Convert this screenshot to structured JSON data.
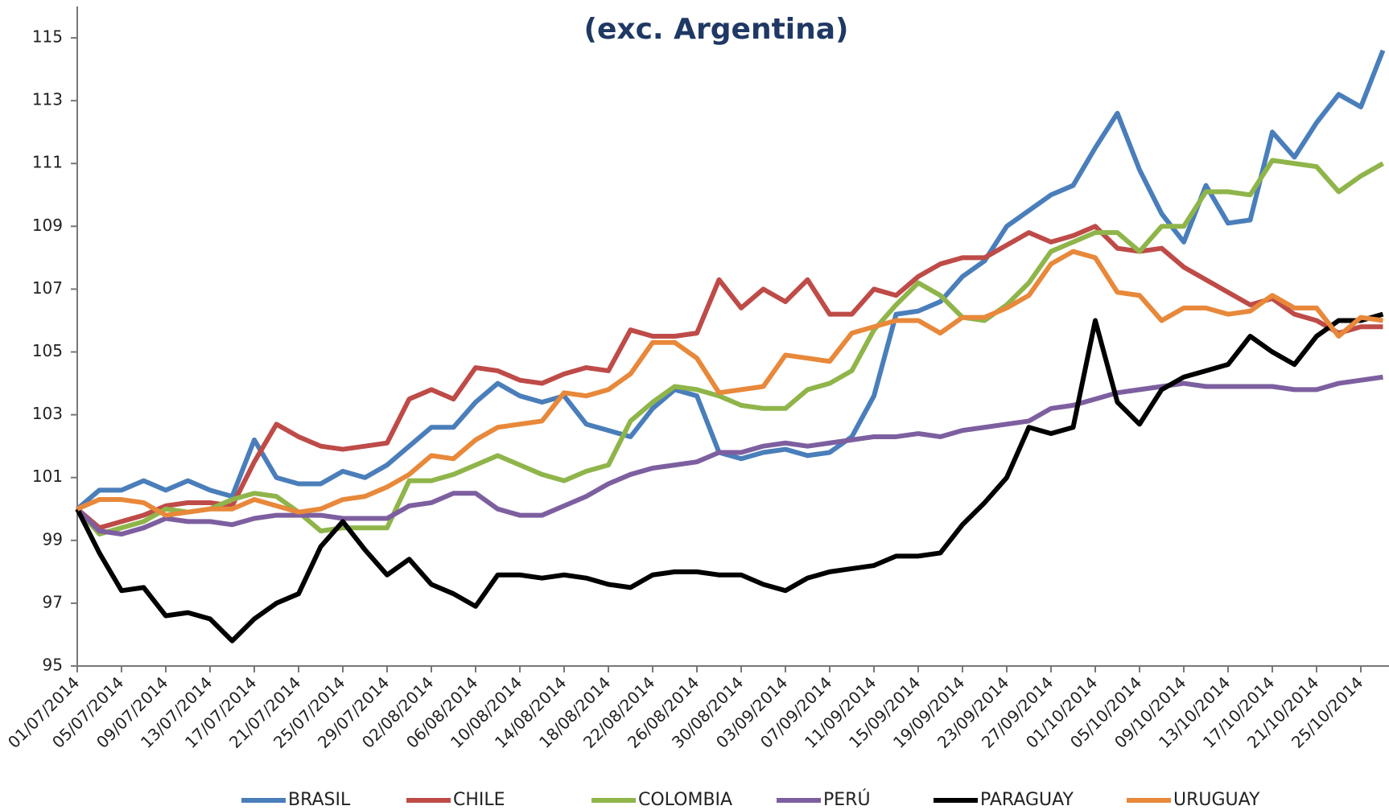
{
  "chart_data": {
    "type": "line",
    "title": "(exc. Argentina)",
    "categories": [
      "01/07/2014",
      null,
      "05/07/2014",
      null,
      "09/07/2014",
      null,
      "13/07/2014",
      null,
      "17/07/2014",
      null,
      "21/07/2014",
      null,
      "25/07/2014",
      null,
      "29/07/2014",
      null,
      "02/08/2014",
      null,
      "06/08/2014",
      null,
      "10/08/2014",
      null,
      "14/08/2014",
      null,
      "18/08/2014",
      null,
      "22/08/2014",
      null,
      "26/08/2014",
      null,
      "30/08/2014",
      null,
      "03/09/2014",
      null,
      "07/09/2014",
      null,
      "11/09/2014",
      null,
      "15/09/2014",
      null,
      "19/09/2014",
      null,
      "23/09/2014",
      null,
      "27/09/2014",
      null,
      "01/10/2014",
      null,
      "05/10/2014",
      null,
      "09/10/2014",
      null,
      "13/10/2014",
      null,
      "17/10/2014",
      null,
      "21/10/2014",
      null,
      "25/10/2014",
      null
    ],
    "series": [
      {
        "name": "BRASIL",
        "color": "#4a7ebb",
        "values": [
          100,
          100.6,
          100.6,
          100.9,
          100.6,
          100.9,
          100.6,
          100.4,
          102.2,
          101.0,
          100.8,
          100.8,
          101.2,
          101.0,
          101.4,
          102.0,
          102.6,
          102.6,
          103.4,
          104.0,
          103.6,
          103.4,
          103.6,
          102.7,
          102.5,
          102.3,
          103.2,
          103.8,
          103.6,
          101.8,
          101.6,
          101.8,
          101.9,
          101.7,
          101.8,
          102.3,
          103.6,
          106.2,
          106.3,
          106.6,
          107.4,
          107.9,
          109.0,
          109.5,
          110.0,
          110.3,
          111.5,
          112.6,
          110.8,
          109.4,
          108.5,
          110.3,
          109.1,
          109.2,
          112.0,
          111.2,
          112.3,
          113.2,
          112.8,
          114.6
        ]
      },
      {
        "name": "CHILE",
        "color": "#be4b48",
        "values": [
          100,
          99.4,
          99.6,
          99.8,
          100.1,
          100.2,
          100.2,
          100.1,
          101.5,
          102.7,
          102.3,
          102.0,
          101.9,
          102.0,
          102.1,
          103.5,
          103.8,
          103.5,
          104.5,
          104.4,
          104.1,
          104.0,
          104.3,
          104.5,
          104.4,
          105.7,
          105.5,
          105.5,
          105.6,
          107.3,
          106.4,
          107.0,
          106.6,
          107.3,
          106.2,
          106.2,
          107.0,
          106.8,
          107.4,
          107.8,
          108.0,
          108.0,
          108.4,
          108.8,
          108.5,
          108.7,
          109.0,
          108.3,
          108.2,
          108.3,
          107.7,
          107.3,
          106.9,
          106.5,
          106.7,
          106.2,
          106.0,
          105.6,
          105.8,
          105.8
        ]
      },
      {
        "name": "COLOMBIA",
        "color": "#8fb54a",
        "values": [
          100,
          99.2,
          99.4,
          99.6,
          100.0,
          99.9,
          100.0,
          100.3,
          100.5,
          100.4,
          99.9,
          99.3,
          99.4,
          99.4,
          99.4,
          100.9,
          100.9,
          101.1,
          101.4,
          101.7,
          101.4,
          101.1,
          100.9,
          101.2,
          101.4,
          102.8,
          103.4,
          103.9,
          103.8,
          103.6,
          103.3,
          103.2,
          103.2,
          103.8,
          104.0,
          104.4,
          105.7,
          106.5,
          107.2,
          106.8,
          106.1,
          106.0,
          106.5,
          107.2,
          108.2,
          108.5,
          108.8,
          108.8,
          108.2,
          109.0,
          109.0,
          110.1,
          110.1,
          110.0,
          111.1,
          111.0,
          110.9,
          110.1,
          110.6,
          111.0
        ]
      },
      {
        "name": "PERÚ",
        "color": "#7d5fa0",
        "values": [
          100,
          99.3,
          99.2,
          99.4,
          99.7,
          99.6,
          99.6,
          99.5,
          99.7,
          99.8,
          99.8,
          99.8,
          99.7,
          99.7,
          99.7,
          100.1,
          100.2,
          100.5,
          100.5,
          100.0,
          99.8,
          99.8,
          100.1,
          100.4,
          100.8,
          101.1,
          101.3,
          101.4,
          101.5,
          101.8,
          101.8,
          102.0,
          102.1,
          102.0,
          102.1,
          102.2,
          102.3,
          102.3,
          102.4,
          102.3,
          102.5,
          102.6,
          102.7,
          102.8,
          103.2,
          103.3,
          103.5,
          103.7,
          103.8,
          103.9,
          104.0,
          103.9,
          103.9,
          103.9,
          103.9,
          103.8,
          103.8,
          104.0,
          104.1,
          104.2
        ]
      },
      {
        "name": "PARAGUAY",
        "color": "#000000",
        "values": [
          100,
          98.6,
          97.4,
          97.5,
          96.6,
          96.7,
          96.5,
          95.8,
          96.5,
          97.0,
          97.3,
          98.8,
          99.6,
          98.7,
          97.9,
          98.4,
          97.6,
          97.3,
          96.9,
          97.9,
          97.9,
          97.8,
          97.9,
          97.8,
          97.6,
          97.5,
          97.9,
          98.0,
          98.0,
          97.9,
          97.9,
          97.6,
          97.4,
          97.8,
          98.0,
          98.1,
          98.2,
          98.5,
          98.5,
          98.6,
          99.5,
          100.2,
          101.0,
          102.6,
          102.4,
          102.6,
          106.0,
          103.4,
          102.7,
          103.8,
          104.2,
          104.4,
          104.6,
          105.5,
          105.0,
          104.6,
          105.5,
          106.0,
          106.0,
          106.2
        ]
      },
      {
        "name": "URUGUAY",
        "color": "#e8883a",
        "values": [
          100,
          100.3,
          100.3,
          100.2,
          99.8,
          99.9,
          100.0,
          100.0,
          100.3,
          100.1,
          99.9,
          100.0,
          100.3,
          100.4,
          100.7,
          101.1,
          101.7,
          101.6,
          102.2,
          102.6,
          102.7,
          102.8,
          103.7,
          103.6,
          103.8,
          104.3,
          105.3,
          105.3,
          104.8,
          103.7,
          103.8,
          103.9,
          104.9,
          104.8,
          104.7,
          105.6,
          105.8,
          106.0,
          106.0,
          105.6,
          106.1,
          106.1,
          106.4,
          106.8,
          107.8,
          108.2,
          108.0,
          106.9,
          106.8,
          106.0,
          106.4,
          106.4,
          106.2,
          106.3,
          106.8,
          106.4,
          106.4,
          105.5,
          106.1,
          106.0
        ]
      }
    ],
    "ylim": [
      95,
      116
    ],
    "yticks": [
      95,
      97,
      99,
      101,
      103,
      105,
      107,
      109,
      111,
      113,
      115
    ],
    "legend": "bottom"
  }
}
